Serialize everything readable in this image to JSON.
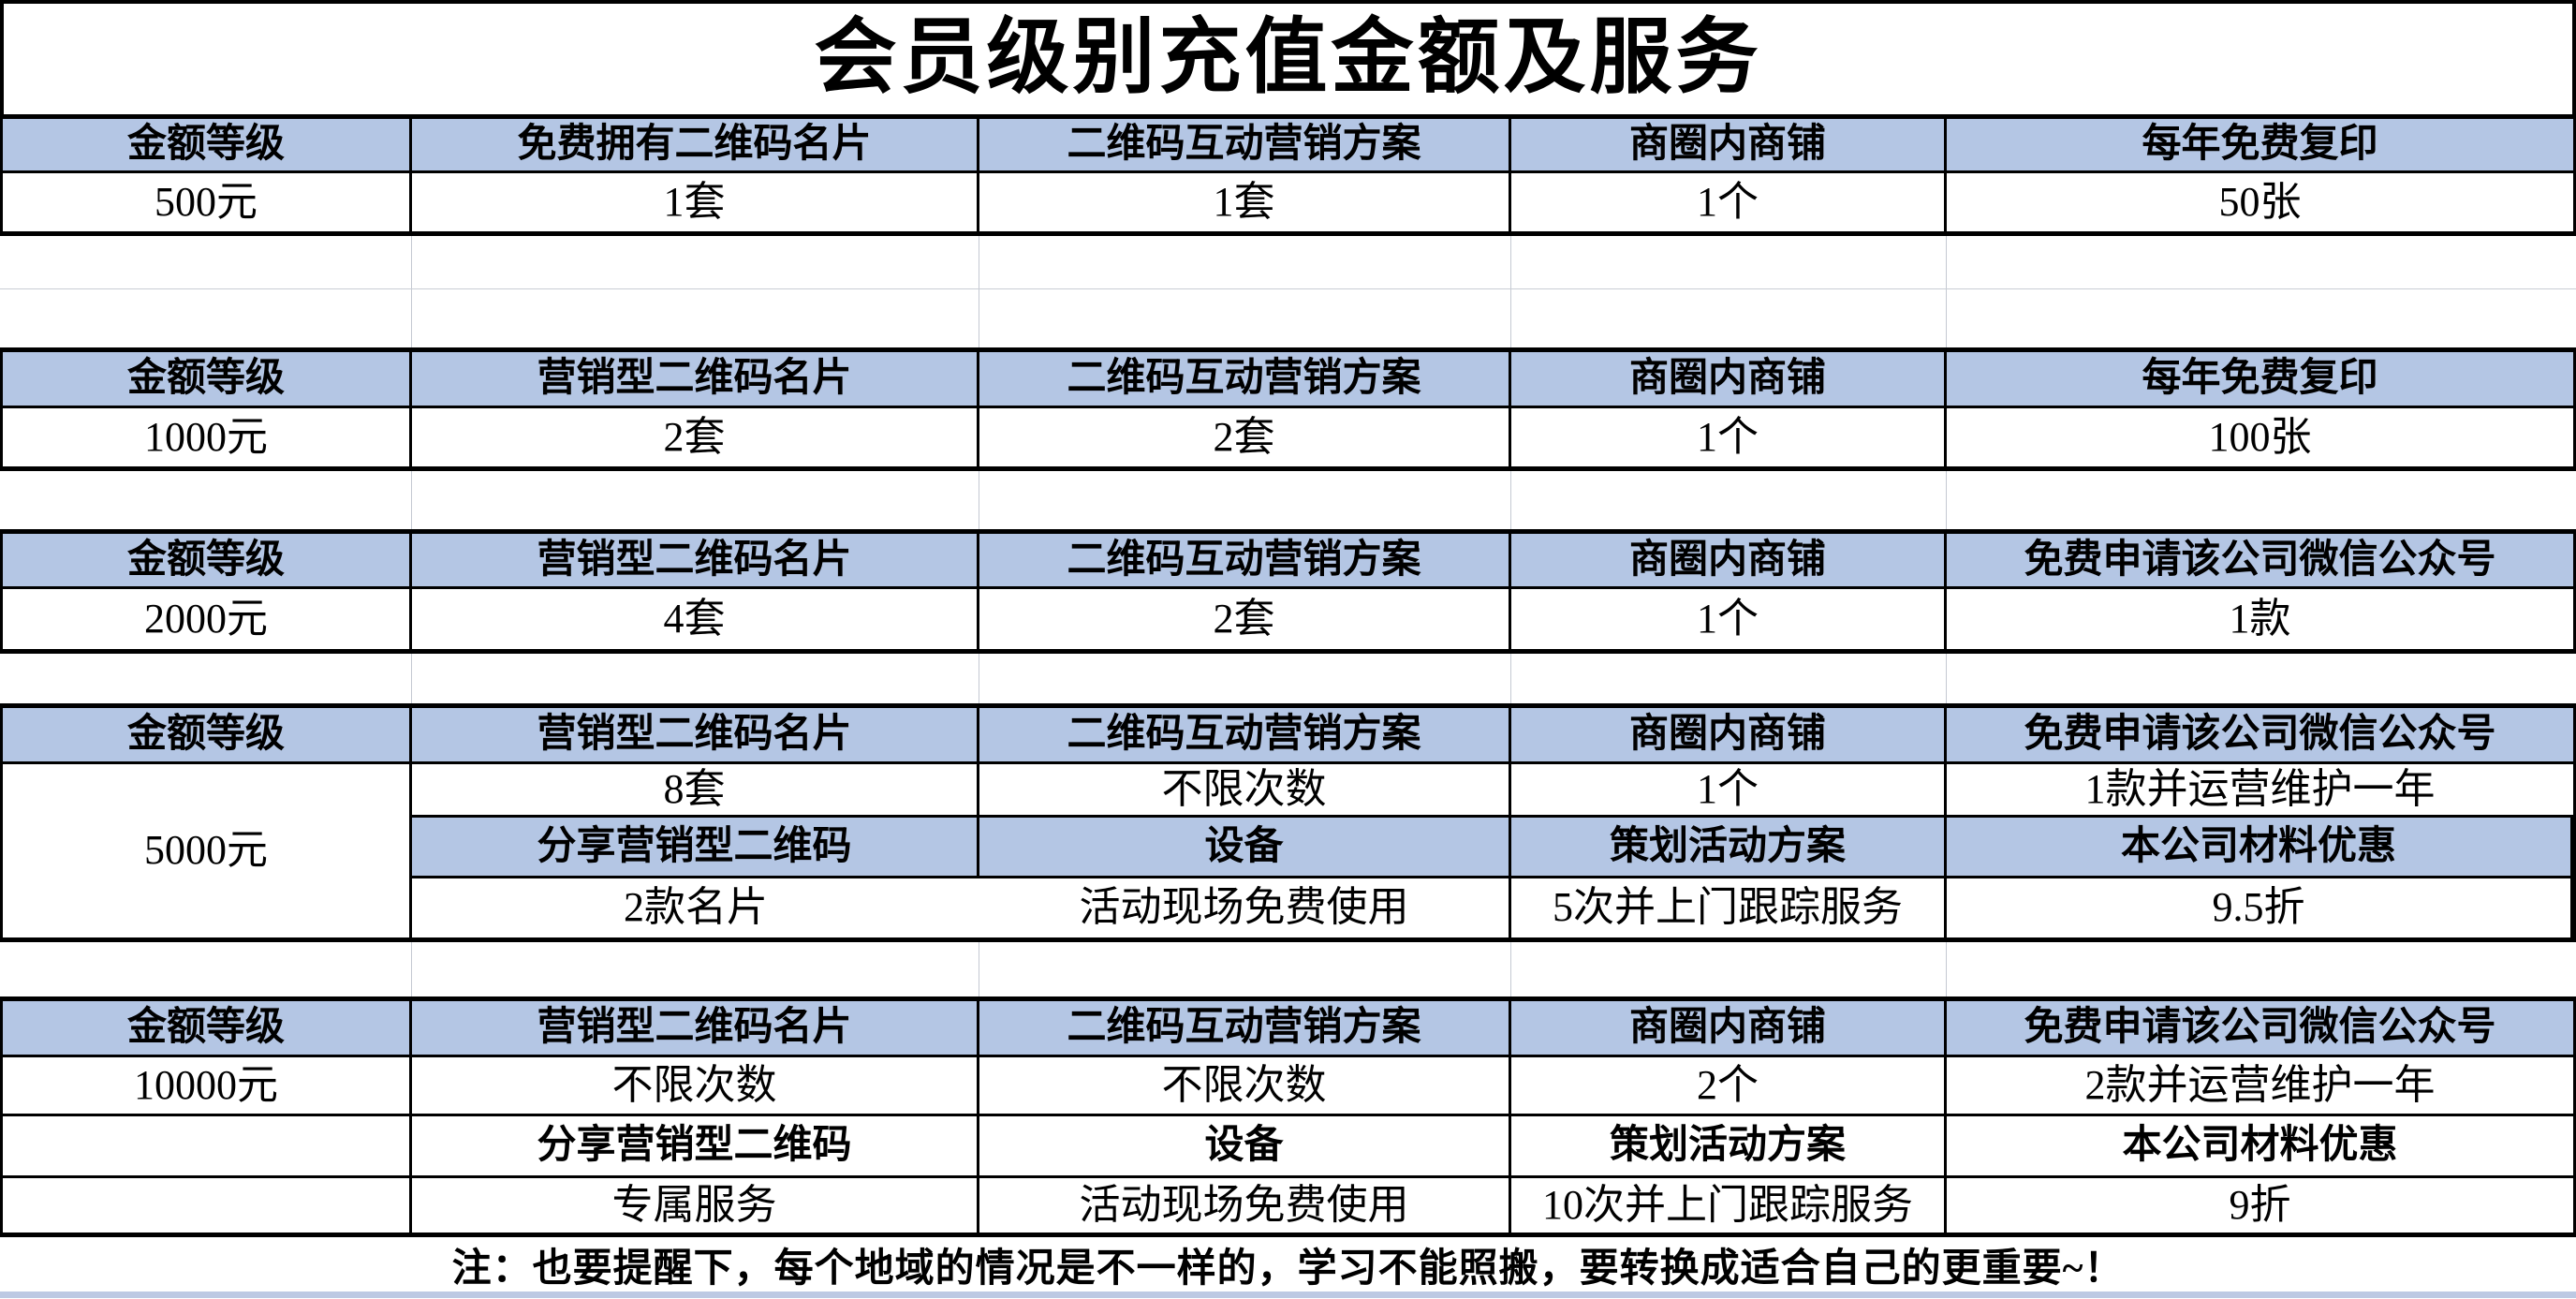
{
  "title": "会员级别充值金额及服务",
  "colors": {
    "header_bg": "#b4c6e4",
    "border_black": "#000000",
    "gridline_gray": "#c4c9d2",
    "bottom_strip": "#bdc9e3"
  },
  "sections": [
    {
      "headers": [
        "金额等级",
        "免费拥有二维码名片",
        "二维码互动营销方案",
        "商圈内商铺",
        "每年免费复印"
      ],
      "rows": [
        [
          "500元",
          "1套",
          "1套",
          "1个",
          "50张"
        ]
      ]
    },
    {
      "headers": [
        "金额等级",
        "营销型二维码名片",
        "二维码互动营销方案",
        "商圈内商铺",
        "每年免费复印"
      ],
      "rows": [
        [
          "1000元",
          "2套",
          "2套",
          "1个",
          "100张"
        ]
      ]
    },
    {
      "headers": [
        "金额等级",
        "营销型二维码名片",
        "二维码互动营销方案",
        "商圈内商铺",
        "免费申请该公司微信公众号"
      ],
      "rows": [
        [
          "2000元",
          "4套",
          "2套",
          "1个",
          "1款"
        ]
      ]
    },
    {
      "headers": [
        "金额等级",
        "营销型二维码名片",
        "二维码互动营销方案",
        "商圈内商铺",
        "免费申请该公司微信公众号"
      ],
      "amount": "5000元",
      "rows": [
        [
          "8套",
          "不限次数",
          "1个",
          "1款并运营维护一年"
        ],
        [
          "分享营销型二维码",
          "设备",
          "策划活动方案",
          "本公司材料优惠"
        ],
        [
          "2款名片",
          "活动现场免费使用",
          "5次并上门跟踪服务",
          "9.5折"
        ]
      ]
    },
    {
      "headers": [
        "金额等级",
        "营销型二维码名片",
        "二维码互动营销方案",
        "商圈内商铺",
        "免费申请该公司微信公众号"
      ],
      "rows": [
        [
          "10000元",
          "不限次数",
          "不限次数",
          "2个",
          "2款并运营维护一年"
        ],
        [
          "",
          "分享营销型二维码",
          "设备",
          "策划活动方案",
          "本公司材料优惠"
        ],
        [
          "",
          "专属服务",
          "活动现场免费使用",
          "10次并上门跟踪服务",
          "9折"
        ]
      ]
    }
  ],
  "note": "注：也要提醒下，每个地域的情况是不一样的，学习不能照搬，要转换成适合自己的更重要~！"
}
